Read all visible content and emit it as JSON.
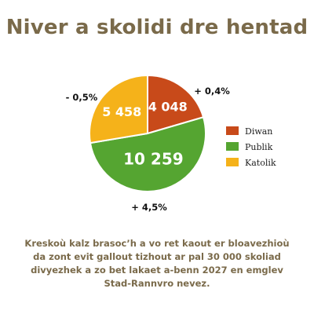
{
  "title": "Niver a skolidi dre hentad",
  "caption": "Kreskoù kalz brasoc’h a vo ret kaout er bloavezhioù da zont evit gallout tizhout ar pal 30 000 skoliad divyezhek a zo bet lakaet a-benn 2027 en emglev Stad-Rannvro nevez.",
  "chart_data": {
    "type": "pie",
    "categories": [
      "Diwan",
      "Publik",
      "Katolik"
    ],
    "values": [
      4048,
      10259,
      5458
    ],
    "value_labels": [
      "4 048",
      "10 259",
      "5 458"
    ],
    "change_labels": [
      "+ 0,4%",
      "+ 4,5%",
      "- 0,5%"
    ],
    "colors": [
      "#c84a1a",
      "#55a531",
      "#f5b21a"
    ],
    "legend": "right"
  }
}
